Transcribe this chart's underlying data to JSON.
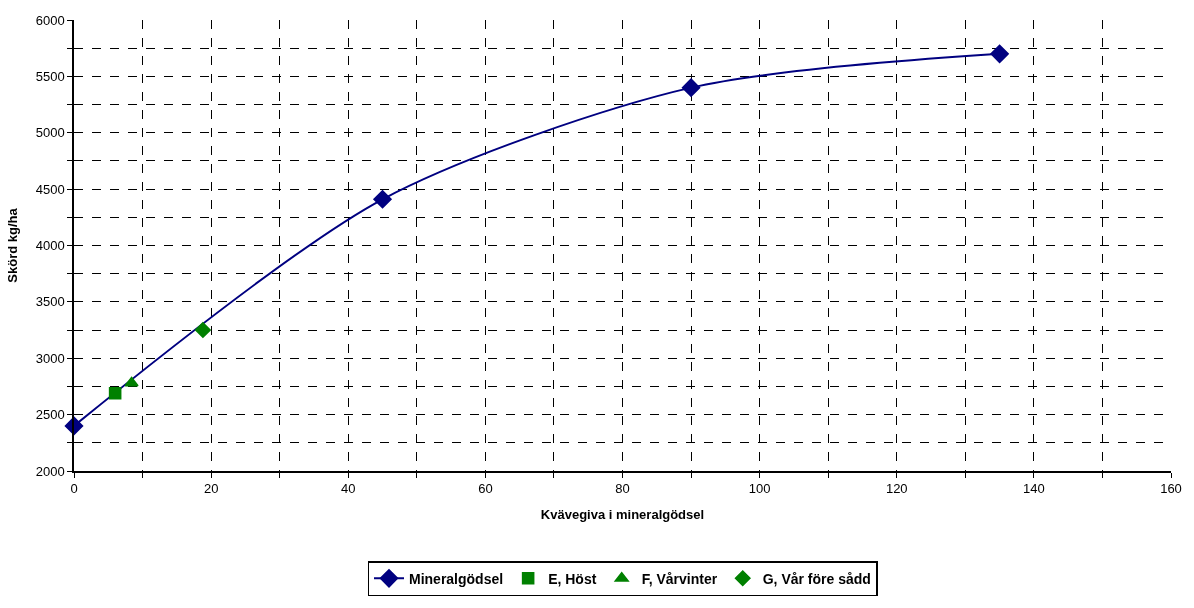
{
  "chart_data": {
    "type": "line",
    "xlabel": "Kvävegiva i mineralgödsel",
    "ylabel": "Skörd kg/ha",
    "xlim": [
      0,
      160
    ],
    "xticks": [
      0,
      {
        "value": 10,
        "label": null
      },
      20,
      {
        "value": 30,
        "label": null
      },
      40,
      {
        "value": 50,
        "label": null
      },
      60,
      {
        "value": 70,
        "label": null
      },
      80,
      {
        "value": 90,
        "label": null
      },
      100,
      {
        "value": 110,
        "label": null
      },
      120,
      {
        "value": 130,
        "label": null
      },
      140,
      {
        "value": 150,
        "label": null
      },
      160
    ],
    "ylim": [
      2000,
      6000
    ],
    "yticks": [
      2000,
      {
        "value": 2250,
        "label": null
      },
      2500,
      {
        "value": 2750,
        "label": null
      },
      3000,
      {
        "value": 3250,
        "label": null
      },
      3500,
      {
        "value": 3750,
        "label": null
      },
      4000,
      {
        "value": 4250,
        "label": null
      },
      4500,
      {
        "value": 4750,
        "label": null
      },
      5000,
      {
        "value": 5250,
        "label": null
      },
      5500,
      {
        "value": 5750,
        "label": null
      },
      6000
    ],
    "grid": true,
    "legend": "bottom",
    "series": [
      {
        "name": "Mineralgödsel",
        "color": "#000080",
        "marker": "diamond",
        "x": [
          0,
          45,
          90,
          135
        ],
        "values": [
          2400,
          4410,
          5400,
          5700
        ]
      },
      {
        "name": "E, Höst",
        "color": "#008000",
        "type": "scatter",
        "marker": "square",
        "x": [
          6
        ],
        "values": [
          2690
        ]
      },
      {
        "name": "F, Vårvinter",
        "color": "#008000",
        "type": "scatter",
        "marker": "triangle",
        "x": [
          8.4
        ],
        "values": [
          2780
        ]
      },
      {
        "name": "G, Vår före sådd",
        "color": "#008000",
        "type": "scatter",
        "marker": "diamond",
        "x": [
          18.8
        ],
        "values": [
          3250
        ]
      }
    ]
  }
}
